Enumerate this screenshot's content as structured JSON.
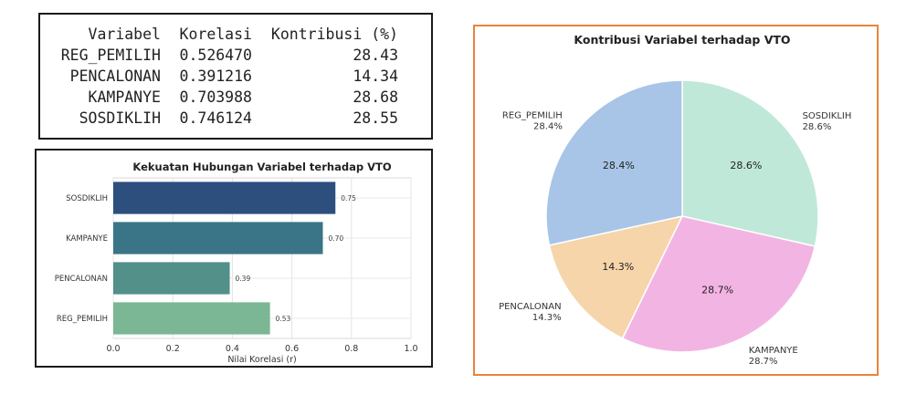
{
  "table": {
    "headers": [
      "Variabel",
      "Korelasi",
      "Kontribusi (%)"
    ],
    "rows": [
      [
        "REG_PEMILIH",
        "0.526470",
        "28.43"
      ],
      [
        "PENCALONAN",
        "0.391216",
        "14.34"
      ],
      [
        "KAMPANYE",
        "0.703988",
        "28.68"
      ],
      [
        "SOSDIKLIH",
        "0.746124",
        "28.55"
      ]
    ]
  },
  "chart_data": [
    {
      "type": "bar",
      "orientation": "horizontal",
      "title": "Kekuatan Hubungan Variabel terhadap VTO",
      "xlabel": "Nilai Korelasi (r)",
      "ylabel": "",
      "xlim": [
        0,
        1.0
      ],
      "xticks": [
        "0.0",
        "0.2",
        "0.4",
        "0.6",
        "0.8",
        "1.0"
      ],
      "grid": true,
      "categories": [
        "SOSDIKLIH",
        "KAMPANYE",
        "PENCALONAN",
        "REG_PEMILIH"
      ],
      "values": [
        0.746124,
        0.703988,
        0.391216,
        0.52647
      ],
      "labels": [
        "0.75",
        "0.70",
        "0.39",
        "0.53"
      ],
      "colors": [
        "#2c4f7e",
        "#3a7587",
        "#529089",
        "#7bb794"
      ]
    },
    {
      "type": "pie",
      "title": "Kontribusi Variabel terhadap VTO",
      "categories": [
        "SOSDIKLIH",
        "KAMPANYE",
        "PENCALONAN",
        "REG_PEMILIH"
      ],
      "values": [
        28.55,
        28.68,
        14.34,
        28.43
      ],
      "slice_labels": [
        "28.6%",
        "28.7%",
        "14.3%",
        "28.4%"
      ],
      "outer_labels": [
        "SOSDIKLIH\n28.6%",
        "KAMPANYE\n28.7%",
        "PENCALONAN\n14.3%",
        "REG_PEMILIH\n28.4%"
      ],
      "colors": [
        "#c0e8d8",
        "#f2b5e3",
        "#f6d5aa",
        "#a8c5e7"
      ],
      "start_angle": 90,
      "direction": "clockwise"
    }
  ]
}
